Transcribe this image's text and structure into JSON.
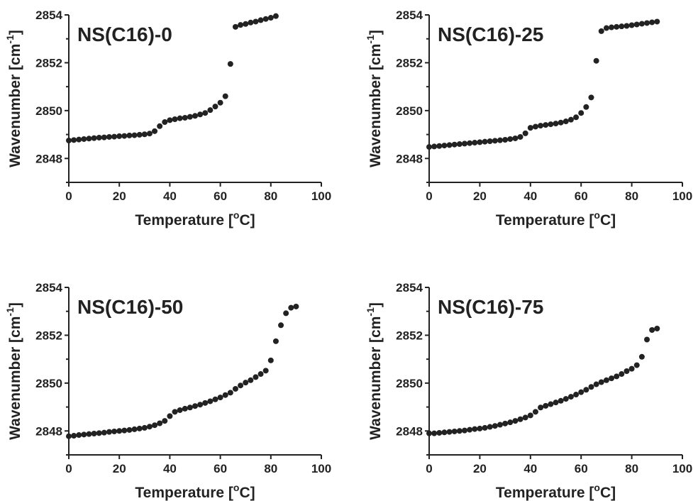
{
  "chart_data": [
    {
      "type": "scatter",
      "title": "NS(C16)-0",
      "xlabel": {
        "pre": "Temperature [",
        "sup": "o",
        "post": "C]"
      },
      "ylabel": {
        "pre": "Wavenumber [cm",
        "sup": "-1",
        "post": "]"
      },
      "xlim": [
        0,
        100
      ],
      "ylim": [
        2847,
        2854
      ],
      "xticks": [
        0,
        20,
        40,
        60,
        80,
        100
      ],
      "yticks": [
        2848,
        2850,
        2852,
        2854
      ],
      "x": [
        0,
        2,
        4,
        6,
        8,
        10,
        12,
        14,
        16,
        18,
        20,
        22,
        24,
        26,
        28,
        30,
        32,
        34,
        36,
        38,
        40,
        42,
        44,
        46,
        48,
        50,
        52,
        54,
        56,
        58,
        60,
        62,
        64,
        66,
        68,
        70,
        72,
        74,
        76,
        78,
        80,
        82
      ],
      "y": [
        2848.75,
        2848.77,
        2848.79,
        2848.81,
        2848.83,
        2848.85,
        2848.87,
        2848.88,
        2848.9,
        2848.91,
        2848.93,
        2848.94,
        2848.96,
        2848.97,
        2848.99,
        2849.01,
        2849.04,
        2849.14,
        2849.35,
        2849.52,
        2849.6,
        2849.64,
        2849.68,
        2849.7,
        2849.74,
        2849.78,
        2849.84,
        2849.9,
        2850.02,
        2850.17,
        2850.33,
        2850.6,
        2851.95,
        2853.5,
        2853.58,
        2853.62,
        2853.68,
        2853.72,
        2853.78,
        2853.83,
        2853.88,
        2853.95
      ]
    },
    {
      "type": "scatter",
      "title": "NS(C16)-25",
      "xlabel": {
        "pre": "Temperature [",
        "sup": "o",
        "post": "C]"
      },
      "ylabel": {
        "pre": "Wavenumber [cm",
        "sup": "-1",
        "post": "]"
      },
      "xlim": [
        0,
        100
      ],
      "ylim": [
        2847,
        2854
      ],
      "xticks": [
        0,
        20,
        40,
        60,
        80,
        100
      ],
      "yticks": [
        2848,
        2850,
        2852,
        2854
      ],
      "x": [
        0,
        2,
        4,
        6,
        8,
        10,
        12,
        14,
        16,
        18,
        20,
        22,
        24,
        26,
        28,
        30,
        32,
        34,
        36,
        38,
        40,
        42,
        44,
        46,
        48,
        50,
        52,
        54,
        56,
        58,
        60,
        62,
        64,
        66,
        68,
        70,
        72,
        74,
        76,
        78,
        80,
        82,
        84,
        86,
        88,
        90
      ],
      "y": [
        2848.48,
        2848.5,
        2848.52,
        2848.54,
        2848.56,
        2848.58,
        2848.6,
        2848.62,
        2848.64,
        2848.66,
        2848.68,
        2848.7,
        2848.72,
        2848.74,
        2848.76,
        2848.78,
        2848.81,
        2848.84,
        2848.9,
        2849.05,
        2849.28,
        2849.33,
        2849.37,
        2849.4,
        2849.43,
        2849.46,
        2849.5,
        2849.55,
        2849.62,
        2849.72,
        2849.9,
        2850.15,
        2850.55,
        2852.08,
        2853.32,
        2853.45,
        2853.48,
        2853.5,
        2853.52,
        2853.54,
        2853.57,
        2853.6,
        2853.63,
        2853.66,
        2853.69,
        2853.72
      ]
    },
    {
      "type": "scatter",
      "title": "NS(C16)-50",
      "xlabel": {
        "pre": "Temperature [",
        "sup": "o",
        "post": "C]"
      },
      "ylabel": {
        "pre": "Wavenumber [cm",
        "sup": "-1",
        "post": "]"
      },
      "xlim": [
        0,
        100
      ],
      "ylim": [
        2847,
        2854
      ],
      "xticks": [
        0,
        20,
        40,
        60,
        80,
        100
      ],
      "yticks": [
        2848,
        2850,
        2852,
        2854
      ],
      "x": [
        0,
        2,
        4,
        6,
        8,
        10,
        12,
        14,
        16,
        18,
        20,
        22,
        24,
        26,
        28,
        30,
        32,
        34,
        36,
        38,
        40,
        42,
        44,
        46,
        48,
        50,
        52,
        54,
        56,
        58,
        60,
        62,
        64,
        66,
        68,
        70,
        72,
        74,
        76,
        78,
        80,
        82,
        84,
        86,
        88,
        90
      ],
      "y": [
        2847.78,
        2847.8,
        2847.83,
        2847.85,
        2847.87,
        2847.89,
        2847.91,
        2847.93,
        2847.96,
        2847.98,
        2848.0,
        2848.02,
        2848.04,
        2848.07,
        2848.1,
        2848.13,
        2848.18,
        2848.24,
        2848.32,
        2848.42,
        2848.62,
        2848.8,
        2848.87,
        2848.93,
        2848.98,
        2849.04,
        2849.1,
        2849.17,
        2849.24,
        2849.32,
        2849.4,
        2849.5,
        2849.6,
        2849.76,
        2849.9,
        2850.02,
        2850.12,
        2850.25,
        2850.38,
        2850.52,
        2850.95,
        2851.75,
        2852.42,
        2852.92,
        2853.15,
        2853.2
      ]
    },
    {
      "type": "scatter",
      "title": "NS(C16)-75",
      "xlabel": {
        "pre": "Temperature [",
        "sup": "o",
        "post": "C]"
      },
      "ylabel": {
        "pre": "Wavenumber [cm",
        "sup": "-1",
        "post": "]"
      },
      "xlim": [
        0,
        100
      ],
      "ylim": [
        2847,
        2854
      ],
      "xticks": [
        0,
        20,
        40,
        60,
        80,
        100
      ],
      "yticks": [
        2848,
        2850,
        2852,
        2854
      ],
      "x": [
        0,
        2,
        4,
        6,
        8,
        10,
        12,
        14,
        16,
        18,
        20,
        22,
        24,
        26,
        28,
        30,
        32,
        34,
        36,
        38,
        40,
        42,
        44,
        46,
        48,
        50,
        52,
        54,
        56,
        58,
        60,
        62,
        64,
        66,
        68,
        70,
        72,
        74,
        76,
        78,
        80,
        82,
        84,
        86,
        88,
        90
      ],
      "y": [
        2847.9,
        2847.9,
        2847.92,
        2847.94,
        2847.96,
        2847.98,
        2848.0,
        2848.02,
        2848.05,
        2848.08,
        2848.1,
        2848.13,
        2848.17,
        2848.21,
        2848.26,
        2848.31,
        2848.36,
        2848.42,
        2848.49,
        2848.56,
        2848.65,
        2848.8,
        2848.98,
        2849.05,
        2849.12,
        2849.19,
        2849.26,
        2849.34,
        2849.43,
        2849.52,
        2849.62,
        2849.72,
        2849.84,
        2849.95,
        2850.04,
        2850.12,
        2850.2,
        2850.28,
        2850.38,
        2850.5,
        2850.6,
        2850.75,
        2851.1,
        2851.82,
        2852.22,
        2852.28
      ]
    }
  ],
  "style": {
    "marker_color": "#222222",
    "axis_color": "#222222"
  }
}
